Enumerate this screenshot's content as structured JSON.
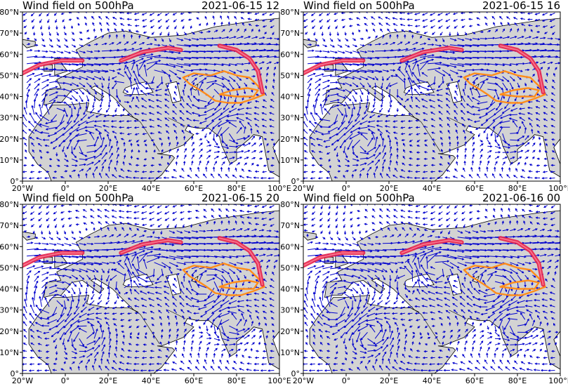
{
  "chart_data": [
    {
      "type": "vector-field",
      "title": "Wind field on 500hPa",
      "timestamp": "2021-06-15 12",
      "x_ticks": [
        "20°W",
        "0°",
        "20°E",
        "40°E",
        "60°E",
        "80°E",
        "100°E"
      ],
      "y_ticks": [
        "0°",
        "10°N",
        "20°N",
        "30°N",
        "40°N",
        "50°N",
        "60°N",
        "70°N",
        "80°N"
      ],
      "xlim": [
        -20,
        100
      ],
      "ylim": [
        0,
        80
      ],
      "colors": {
        "land": "#d3d3d3",
        "sea": "#ffffff",
        "vectors": "#0000cd",
        "jet": "#e8244a",
        "region": "#ff8c1a"
      }
    },
    {
      "type": "vector-field",
      "title": "Wind field on 500hPa",
      "timestamp": "2021-06-15 16",
      "x_ticks": [
        "20°W",
        "0°",
        "20°E",
        "40°E",
        "60°E",
        "80°E",
        "100°E"
      ],
      "y_ticks": [
        "0°",
        "10°N",
        "20°N",
        "30°N",
        "40°N",
        "50°N",
        "60°N",
        "70°N",
        "80°N"
      ],
      "xlim": [
        -20,
        100
      ],
      "ylim": [
        0,
        80
      ],
      "colors": {
        "land": "#d3d3d3",
        "sea": "#ffffff",
        "vectors": "#0000cd",
        "jet": "#e8244a",
        "region": "#ff8c1a"
      }
    },
    {
      "type": "vector-field",
      "title": "Wind field on 500hPa",
      "timestamp": "2021-06-15 20",
      "x_ticks": [
        "20°W",
        "0°",
        "20°E",
        "40°E",
        "60°E",
        "80°E",
        "100°E"
      ],
      "y_ticks": [
        "0°",
        "10°N",
        "20°N",
        "30°N",
        "40°N",
        "50°N",
        "60°N",
        "70°N",
        "80°N"
      ],
      "xlim": [
        -20,
        100
      ],
      "ylim": [
        0,
        80
      ],
      "colors": {
        "land": "#d3d3d3",
        "sea": "#ffffff",
        "vectors": "#0000cd",
        "jet": "#e8244a",
        "region": "#ff8c1a"
      }
    },
    {
      "type": "vector-field",
      "title": "Wind field on 500hPa",
      "timestamp": "2021-06-16 00",
      "x_ticks": [
        "20°W",
        "0°",
        "20°E",
        "40°E",
        "60°E",
        "80°E",
        "100°E"
      ],
      "y_ticks": [
        "0°",
        "10°N",
        "20°N",
        "30°N",
        "40°N",
        "50°N",
        "60°N",
        "70°N",
        "80°N"
      ],
      "xlim": [
        -20,
        100
      ],
      "ylim": [
        0,
        80
      ],
      "colors": {
        "land": "#d3d3d3",
        "sea": "#ffffff",
        "vectors": "#0000cd",
        "jet": "#e8244a",
        "region": "#ff8c1a"
      }
    }
  ]
}
